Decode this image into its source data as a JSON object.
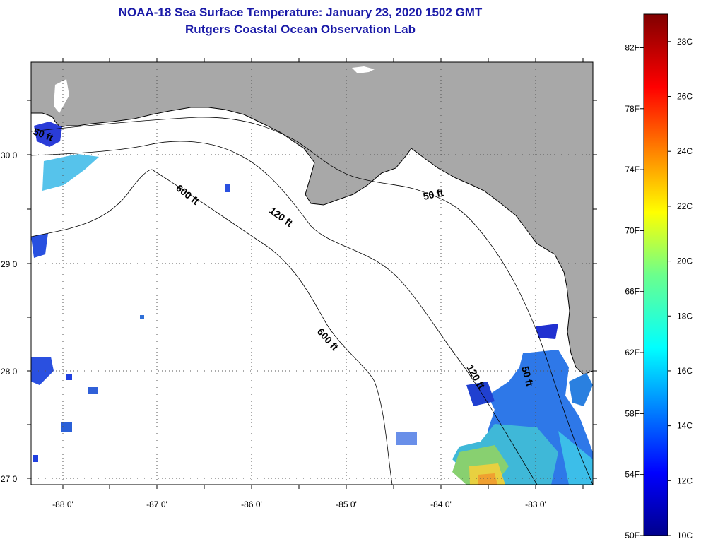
{
  "title": {
    "line1": "NOAA-18 Sea Surface Temperature:  January 23, 2020 1502 GMT",
    "line2": "Rutgers Coastal Ocean Observation Lab"
  },
  "axes": {
    "lon_ticks": [
      "-88 0'",
      "-87 0'",
      "-86 0'",
      "-85 0'",
      "-84 0'",
      "-83 0'"
    ],
    "lat_ticks": [
      "30 0'",
      "29 0'",
      "28 0'",
      "27 0'"
    ]
  },
  "contours": {
    "label_600_a": "600 ft",
    "label_600_b": "600 ft",
    "label_120_a": "120 ft",
    "label_120_b": "120 ft",
    "label_50_a": "50 ft",
    "label_50_b": "50 ft",
    "label_50_c": "50 ft"
  },
  "colorbar": {
    "fahrenheit": [
      "82F",
      "78F",
      "74F",
      "70F",
      "66F",
      "62F",
      "58F",
      "54F",
      "50F"
    ],
    "celsius": [
      "28C",
      "26C",
      "24C",
      "22C",
      "20C",
      "18C",
      "16C",
      "14C",
      "12C",
      "10C"
    ]
  },
  "colors": {
    "land": "#a8a8a8",
    "ocean": "#ffffff",
    "title": "#1a1aa8"
  }
}
